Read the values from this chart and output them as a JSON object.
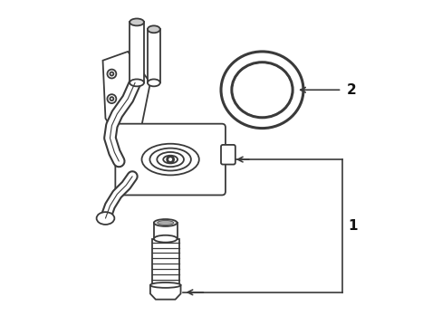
{
  "bg_color": "#ffffff",
  "line_color": "#3a3a3a",
  "label_color": "#111111",
  "label1": "1",
  "label2": "2",
  "figsize": [
    4.89,
    3.6
  ],
  "dpi": 100
}
